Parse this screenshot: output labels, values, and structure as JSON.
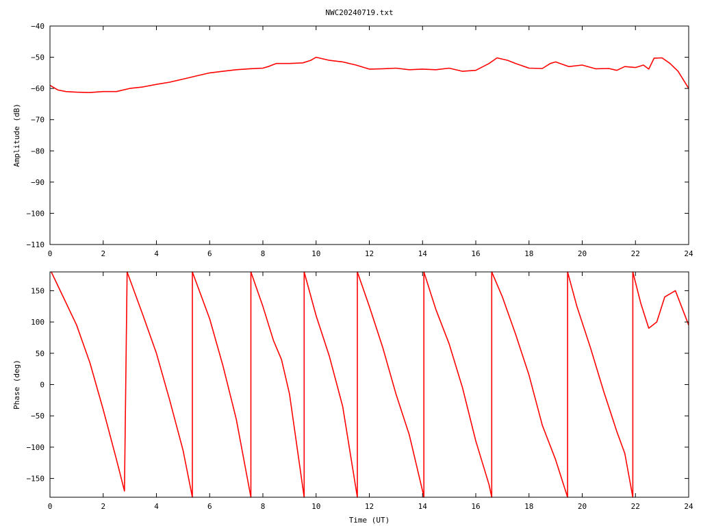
{
  "title": "NWC20240719.txt",
  "colors": {
    "series": "#ff0000",
    "axis": "#000000",
    "background": "#ffffff"
  },
  "chart_data": [
    {
      "type": "line",
      "title": "NWC20240719.txt",
      "xlabel": "",
      "ylabel": "Amplitude (dB)",
      "xlim": [
        0,
        24
      ],
      "ylim": [
        -110,
        -40
      ],
      "xticks": [
        0,
        2,
        4,
        6,
        8,
        10,
        12,
        14,
        16,
        18,
        20,
        22,
        24
      ],
      "xtick_labels": [
        "0",
        "2",
        "4",
        "6",
        "8",
        "10",
        "12",
        "14",
        "16",
        "18",
        "20",
        "22",
        "24"
      ],
      "yticks": [
        -40,
        -50,
        -60,
        -70,
        -80,
        -90,
        -100,
        -110
      ],
      "ytick_labels": [
        "−40",
        "−50",
        "−60",
        "−70",
        "−80",
        "−90",
        "−100",
        "−110"
      ],
      "grid": false,
      "series": [
        {
          "color": "#ff0000",
          "x": [
            0,
            0.3,
            0.6,
            1.0,
            1.5,
            2.0,
            2.5,
            3.0,
            3.5,
            4.0,
            4.5,
            5.0,
            5.5,
            6.0,
            6.5,
            7.0,
            7.5,
            8.0,
            8.2,
            8.5,
            9.0,
            9.5,
            9.8,
            10.0,
            10.5,
            11.0,
            11.5,
            12.0,
            12.5,
            13.0,
            13.5,
            14.0,
            14.5,
            15.0,
            15.5,
            16.0,
            16.5,
            16.8,
            17.2,
            17.5,
            18.0,
            18.5,
            18.8,
            19.0,
            19.5,
            20.0,
            20.5,
            21.0,
            21.3,
            21.6,
            22.0,
            22.3,
            22.5,
            22.7,
            23.0,
            23.3,
            23.6,
            24.0
          ],
          "y": [
            -59,
            -60.5,
            -61,
            -61.2,
            -61.3,
            -61,
            -61,
            -60,
            -59.5,
            -58.7,
            -58,
            -57,
            -56,
            -55,
            -54.5,
            -54,
            -53.7,
            -53.5,
            -53,
            -52,
            -52,
            -51.8,
            -51,
            -50,
            -51,
            -51.5,
            -52.5,
            -53.8,
            -53.7,
            -53.5,
            -54,
            -53.8,
            -54,
            -53.5,
            -54.5,
            -54.2,
            -52,
            -50.2,
            -51,
            -52,
            -53.5,
            -53.6,
            -52,
            -51.5,
            -53,
            -52.5,
            -53.7,
            -53.6,
            -54.2,
            -53,
            -53.3,
            -52.5,
            -53.8,
            -50.3,
            -50.2,
            -52,
            -54.5,
            -60
          ]
        }
      ]
    },
    {
      "type": "line",
      "title": "",
      "xlabel": "Time (UT)",
      "ylabel": "Phase (deg)",
      "xlim": [
        0,
        24
      ],
      "ylim": [
        -180,
        180
      ],
      "xticks": [
        0,
        2,
        4,
        6,
        8,
        10,
        12,
        14,
        16,
        18,
        20,
        22,
        24
      ],
      "xtick_labels": [
        "0",
        "2",
        "4",
        "6",
        "8",
        "10",
        "12",
        "14",
        "16",
        "18",
        "20",
        "22",
        "24"
      ],
      "yticks": [
        150,
        100,
        50,
        0,
        -50,
        -100,
        -150
      ],
      "ytick_labels": [
        "150",
        "100",
        "50",
        "0",
        "−50",
        "−100",
        "−150"
      ],
      "grid": false,
      "series": [
        {
          "color": "#ff0000",
          "x": [
            0.05,
            0.5,
            1.0,
            1.5,
            2.0,
            2.5,
            2.8,
            2.9,
            3.5,
            4.0,
            4.5,
            5.0,
            5.35,
            5.35,
            6.0,
            6.5,
            7.0,
            7.55,
            7.55,
            8.0,
            8.4,
            8.7,
            9.0,
            9.55,
            9.55,
            10.0,
            10.5,
            11.0,
            11.55,
            11.55,
            12.0,
            12.5,
            13.0,
            13.5,
            14.0,
            14.05,
            14.05,
            14.5,
            15.0,
            15.5,
            16.0,
            16.5,
            16.6,
            16.6,
            17.0,
            17.5,
            18.0,
            18.5,
            19.0,
            19.45,
            19.45,
            19.8,
            20.3,
            20.8,
            21.3,
            21.6,
            21.9,
            21.9,
            22.2,
            22.5,
            22.8,
            23.1,
            23.5,
            24.0
          ],
          "y": [
            180,
            140,
            95,
            35,
            -40,
            -120,
            -170,
            180,
            110,
            50,
            -25,
            -105,
            -180,
            180,
            105,
            30,
            -55,
            -180,
            180,
            125,
            70,
            40,
            -15,
            -180,
            180,
            110,
            45,
            -35,
            -180,
            180,
            125,
            60,
            -15,
            -80,
            -170,
            -180,
            180,
            120,
            65,
            -5,
            -90,
            -160,
            -180,
            180,
            140,
            80,
            15,
            -65,
            -120,
            -180,
            180,
            125,
            60,
            -10,
            -75,
            -110,
            -180,
            180,
            130,
            90,
            100,
            140,
            150,
            95
          ]
        }
      ]
    }
  ]
}
